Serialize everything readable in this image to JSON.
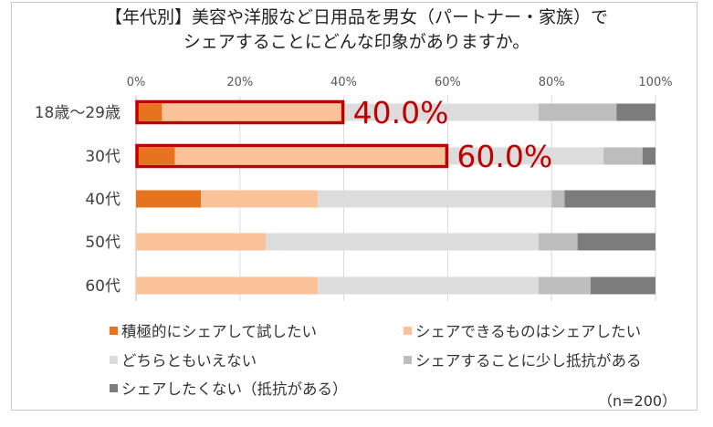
{
  "chart_data": {
    "type": "bar",
    "orientation": "horizontal",
    "stacked": true,
    "title": [
      "【年代別】美容や洋服など日用品を男女（パートナー・家族）で",
      "シェアすることにどんな印象がありますか。"
    ],
    "categories": [
      "18歳～29歳",
      "30代",
      "40代",
      "50代",
      "60代"
    ],
    "xlim": [
      0,
      100
    ],
    "xticks": [
      "0%",
      "20%",
      "40%",
      "60%",
      "80%",
      "100%"
    ],
    "xtick_values": [
      0,
      20,
      40,
      60,
      80,
      100
    ],
    "grid": true,
    "series": [
      {
        "name": "積極的にシェアして試したい",
        "color": "#e8731f",
        "values": [
          5,
          7.5,
          12.5,
          0,
          0
        ]
      },
      {
        "name": "シェアできるものはシェアしたい",
        "color": "#f9c299",
        "values": [
          35,
          52.5,
          22.5,
          25,
          35
        ]
      },
      {
        "name": "どちらともいえない",
        "color": "#dcdcdc",
        "values": [
          37.5,
          30,
          45,
          52.5,
          42.5
        ]
      },
      {
        "name": "シェアすることに少し抵抗がある",
        "color": "#bdbdbd",
        "values": [
          15,
          7.5,
          2.5,
          7.5,
          10
        ]
      },
      {
        "name": "シェアしたくない（抵抗がある）",
        "color": "#7c7c7c",
        "values": [
          7.5,
          2.5,
          17.5,
          15,
          12.5
        ]
      }
    ],
    "annotations": [
      {
        "category": "18歳～29歳",
        "label": "40.0%",
        "value": 40.0,
        "color": "#c00000"
      },
      {
        "category": "30代",
        "label": "60.0%",
        "value": 60.0,
        "color": "#c00000"
      }
    ],
    "note": "（n=200）"
  }
}
